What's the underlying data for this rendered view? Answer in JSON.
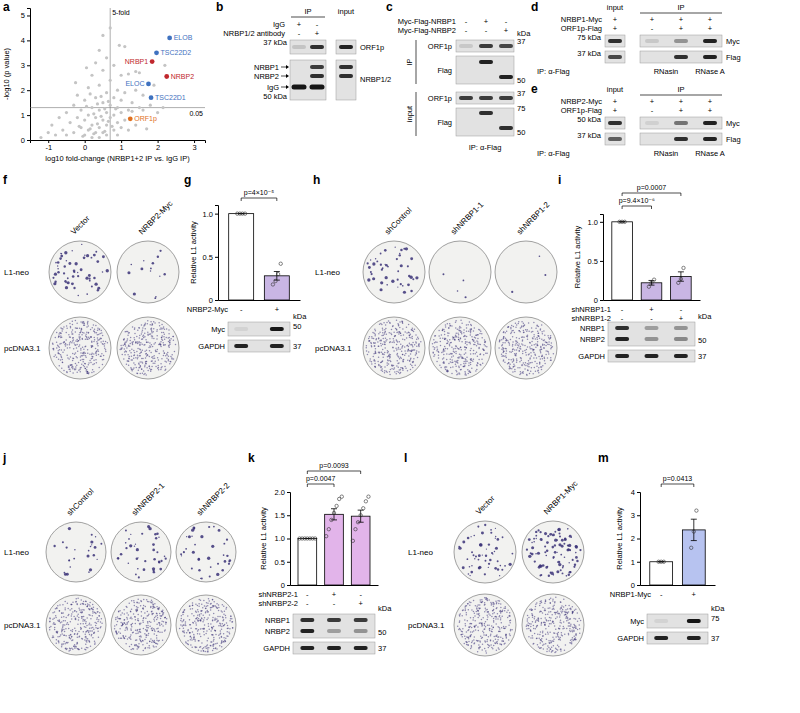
{
  "panel_letters": [
    "a",
    "b",
    "c",
    "d",
    "e",
    "f",
    "g",
    "h",
    "i",
    "j",
    "k",
    "l",
    "m"
  ],
  "chart_data": [
    {
      "type": "scatter",
      "x_label": "log10 fold-change (NRBP1+2 IP vs. IgG IP)",
      "y_label": "-log10 (p value)",
      "xlim": [
        -1.5,
        3.3
      ],
      "ylim": [
        0,
        5.3
      ],
      "xticks": [
        -1,
        0,
        1,
        2,
        3
      ],
      "yticks": [
        0,
        1,
        2,
        3,
        4,
        5
      ],
      "series": [
        {
          "color": "#c4c4c4",
          "x": [
            -1.2,
            -1.0,
            -0.9,
            -0.8,
            -0.7,
            -0.6,
            -0.5,
            -0.5,
            -0.4,
            -0.3,
            -0.3,
            -0.2,
            -0.2,
            -0.1,
            -0.1,
            0.0,
            0.0,
            0.0,
            0.1,
            0.1,
            0.1,
            0.2,
            0.2,
            0.2,
            0.2,
            0.3,
            0.3,
            0.3,
            0.3,
            0.4,
            0.4,
            0.4,
            0.4,
            0.4,
            0.5,
            0.5,
            0.5,
            0.5,
            0.5,
            0.6,
            0.6,
            0.6,
            0.6,
            0.6,
            0.7,
            0.7,
            0.7,
            0.7,
            0.8,
            0.8,
            0.8,
            0.8,
            0.9,
            0.9,
            0.9,
            0.9,
            1.0,
            1.0,
            1.0,
            1.0,
            1.1,
            1.1,
            1.1,
            1.2,
            1.2,
            1.2,
            1.3,
            1.3,
            1.4,
            1.4,
            1.5,
            1.5,
            1.6,
            1.6,
            1.7,
            1.8,
            1.9,
            2.0,
            2.15,
            2.2,
            0.15,
            0.35,
            0.55,
            0.45,
            0.25,
            0.65,
            0.05,
            -0.15,
            0.75,
            0.85,
            -0.05,
            0.35,
            0.55,
            0.25,
            0.45,
            0.65,
            0.15,
            -0.25,
            0.05,
            0.95,
            1.4
          ],
          "values": [
            0.1,
            0.3,
            0.6,
            0.2,
            0.9,
            0.4,
            1.1,
            0.2,
            0.7,
            1.4,
            0.3,
            0.9,
            1.8,
            0.5,
            1.2,
            0.2,
            0.8,
            1.6,
            0.4,
            1.0,
            2.1,
            0.6,
            1.3,
            0.1,
            2.6,
            0.9,
            1.7,
            0.3,
            3.1,
            0.5,
            1.2,
            2.2,
            0.1,
            3.6,
            0.8,
            1.5,
            2.8,
            0.3,
            4.2,
            0.6,
            1.9,
            1.1,
            3.3,
            0.2,
            0.9,
            1.4,
            2.4,
            4.5,
            0.4,
            1.7,
            1.0,
            3.0,
            0.7,
            1.3,
            2.0,
            0.2,
            1.1,
            0.5,
            2.6,
            1.6,
            0.8,
            1.9,
            3.75,
            1.2,
            0.4,
            2.65,
            1.5,
            1.15,
            2.0,
            0.6,
            1.3,
            2.7,
            1.2,
            1.8,
            0.45,
            1.4,
            2.2,
            1.1,
            1.3,
            3.0,
            0.45,
            0.65,
            0.35,
            0.95,
            1.05,
            0.75,
            1.35,
            0.55,
            0.55,
            1.25,
            0.15,
            1.45,
            1.25,
            0.25,
            1.75,
            1.55,
            1.85,
            2.3,
            2.9,
            3.8,
            2.75
          ]
        }
      ],
      "points": [
        {
          "label": "ELOB",
          "x": 2.33,
          "y": 4.1,
          "color": "#3f72c0"
        },
        {
          "label": "TSC22D2",
          "x": 1.97,
          "y": 3.5,
          "color": "#3f72c0"
        },
        {
          "label": "NRBP1",
          "x": 1.85,
          "y": 3.15,
          "color": "#c0272d"
        },
        {
          "label": "NRBP2",
          "x": 2.25,
          "y": 2.55,
          "color": "#c0272d"
        },
        {
          "label": "ELOC",
          "x": 1.75,
          "y": 2.25,
          "color": "#3f72c0"
        },
        {
          "label": "TSC22D1",
          "x": 1.82,
          "y": 1.7,
          "color": "#3f72c0"
        },
        {
          "label": "ORF1p",
          "x": 1.25,
          "y": 0.85,
          "color": "#e0701f"
        }
      ],
      "annotations": [
        {
          "text": "5-fold",
          "x": 0.699
        },
        {
          "text": "0.05",
          "y": 1.301
        }
      ]
    },
    {
      "type": "bar",
      "y_label": "Relative L1 activity",
      "categories": [
        null,
        null
      ],
      "values": [
        1,
        0.28
      ],
      "errors": [
        0,
        0.05
      ],
      "points": [
        [
          1,
          1,
          1,
          1
        ],
        [
          0.18,
          0.22,
          0.3,
          0.42
        ]
      ],
      "colors": [
        "#ffffff",
        "#c9b6e4"
      ],
      "ylim": [
        0,
        1.1
      ],
      "yticks": [
        0,
        0.5,
        {
          "value": 1,
          "label": "1.0"
        }
      ],
      "conditions": [
        {
          "label": "NRBP2-Myc",
          "signs": [
            "-",
            "+"
          ]
        }
      ],
      "annotations": [
        {
          "text": "p=4×10⁻⁵",
          "from": 0,
          "to": 1
        }
      ]
    },
    {
      "type": "bar",
      "y_label": "Relative L1 activity",
      "categories": [
        null,
        null,
        null
      ],
      "values": [
        1,
        0.22,
        0.3
      ],
      "errors": [
        0,
        0.03,
        0.06
      ],
      "points": [
        [
          1,
          1,
          1
        ],
        [
          0.17,
          0.22,
          0.26
        ],
        [
          0.22,
          0.27,
          0.41
        ]
      ],
      "colors": [
        "#ffffff",
        "#c9b6e4",
        "#c9b6e4"
      ],
      "ylim": [
        0,
        1.1
      ],
      "yticks": [
        0,
        0.5,
        {
          "value": 1,
          "label": "1.0"
        }
      ],
      "conditions": [
        {
          "label": "shNRBP1-1",
          "signs": [
            "-",
            "+",
            "-"
          ]
        },
        {
          "label": "shNRBP1-2",
          "signs": [
            "-",
            "-",
            "+"
          ]
        }
      ],
      "annotations": [
        {
          "text": "p=9.4×10⁻⁶",
          "from": 0,
          "to": 1
        },
        {
          "text": "p=0.0007",
          "from": 0,
          "to": 2
        }
      ]
    },
    {
      "type": "bar",
      "y_label": "Relative L1 activity",
      "categories": [
        null,
        null,
        null
      ],
      "values": [
        1,
        1.52,
        1.48
      ],
      "errors": [
        0,
        0.12,
        0.13
      ],
      "points": [
        [
          1,
          1,
          1,
          1,
          1,
          1,
          1
        ],
        [
          1.05,
          1.2,
          1.4,
          1.55,
          1.7,
          1.85,
          1.9
        ],
        [
          0.95,
          1.2,
          1.35,
          1.5,
          1.65,
          1.8,
          1.9
        ]
      ],
      "colors": [
        "#ffffff",
        "#e2b4ea",
        "#e2b4ea"
      ],
      "ylim": [
        0,
        2
      ],
      "yticks": [
        0,
        0.5,
        {
          "value": 1,
          "label": "1.0"
        },
        1.5,
        {
          "value": 2,
          "label": "2.0"
        }
      ],
      "conditions": [
        {
          "label": "shNRBP2-1",
          "signs": [
            "-",
            "+",
            "-"
          ]
        },
        {
          "label": "shNRBP2-2",
          "signs": [
            "-",
            "-",
            "+"
          ]
        }
      ],
      "annotations": [
        {
          "text": "p=0.0047",
          "from": 0,
          "to": 1
        },
        {
          "text": "p=0.0093",
          "from": 0,
          "to": 2
        }
      ]
    },
    {
      "type": "bar",
      "y_label": "Relative L1 activity",
      "categories": [
        null,
        null
      ],
      "values": [
        1,
        2.37
      ],
      "errors": [
        0,
        0.46
      ],
      "points": [
        [
          1,
          1,
          1
        ],
        [
          1.6,
          2.3,
          3.2
        ]
      ],
      "colors": [
        "#ffffff",
        "#b7c3f0"
      ],
      "ylim": [
        0,
        4
      ],
      "yticks": [
        0,
        1,
        2,
        3,
        4
      ],
      "conditions": [
        {
          "label": "NRBP1-Myc",
          "signs": [
            "-",
            "+"
          ]
        }
      ],
      "annotations": [
        {
          "text": "p=0.0413",
          "from": 0,
          "to": 1
        }
      ]
    }
  ],
  "blots": {
    "b": {
      "header": "IP",
      "input": "input",
      "conditions": [
        {
          "label": "IgG",
          "signs": [
            "+",
            "-"
          ]
        },
        {
          "label": "NRBP1/2 antibody",
          "signs": [
            "-",
            "+"
          ]
        }
      ],
      "left_labels": [
        "37 kDa",
        "NRBP1",
        "NRBP2",
        "IgG",
        "50 kDa"
      ],
      "right_labels": [
        "ORF1p",
        "NRBP1/2"
      ]
    },
    "c": {
      "conditions": [
        {
          "label": "Myc-Flag-NRBP1",
          "signs": [
            "-",
            "+",
            "-"
          ]
        },
        {
          "label": "Myc-Flag-NRBP2",
          "signs": [
            "-",
            "-",
            "+"
          ]
        }
      ],
      "sections": [
        "IP",
        "input"
      ],
      "row_labels": [
        "ORF1p",
        "Flag",
        "ORF1p",
        "Flag"
      ],
      "kda_header": "kDa",
      "kda": [
        "37",
        "50",
        "37",
        "75",
        "50"
      ],
      "footer": "IP: α-Flag"
    },
    "d": {
      "header": "IP",
      "input": "input",
      "conditions": [
        {
          "label": "NRBP1-Myc",
          "signs": [
            "+",
            "+",
            "+",
            "+"
          ]
        },
        {
          "label": "ORF1p-Flag",
          "signs": [
            "+",
            "-",
            "+",
            "+"
          ]
        }
      ],
      "left_labels": [
        "75 kDa",
        "37 kDa"
      ],
      "right_labels": [
        "Myc",
        "Flag"
      ],
      "treatments": [
        "RNasin",
        "RNase A"
      ],
      "footer": "IP: α-Flag"
    },
    "e": {
      "header": "IP",
      "input": "input",
      "conditions": [
        {
          "label": "NRBP2-Myc",
          "signs": [
            "+",
            "+",
            "+",
            "+"
          ]
        },
        {
          "label": "ORF1p-Flag",
          "signs": [
            "+",
            "-",
            "+",
            "+"
          ]
        }
      ],
      "left_labels": [
        "50 kDa",
        "37 kDa"
      ],
      "right_labels": [
        "Myc",
        "Flag"
      ],
      "treatments": [
        "RNasin",
        "RNase A"
      ],
      "footer": "IP: α-Flag"
    },
    "g": {
      "rows": [
        "Myc",
        "GAPDH"
      ],
      "kda_header": "kDa",
      "kda": [
        "50",
        "37"
      ]
    },
    "i": {
      "rows": [
        "NRBP1",
        "NRBP2",
        "GAPDH"
      ],
      "kda_header": "kDa",
      "kda": [
        "50",
        "37"
      ]
    },
    "k": {
      "rows": [
        "NRBP1",
        "NRBP2",
        "GAPDH"
      ],
      "kda_header": "kDa",
      "kda": [
        "50",
        "37"
      ]
    },
    "m": {
      "rows": [
        "Myc",
        "GAPDH"
      ],
      "kda_header": "kDa",
      "kda": [
        "75",
        "37"
      ]
    }
  },
  "colonies": {
    "f": {
      "columns": [
        "Vector",
        "NRBP2-Myc"
      ],
      "rows": [
        "L1-neo",
        "pcDNA3.1"
      ]
    },
    "h": {
      "columns": [
        "shControl",
        "shNRBP1-1",
        "shNRBP1-2"
      ],
      "rows": [
        "L1-neo",
        "pcDNA3.1"
      ]
    },
    "j": {
      "columns": [
        "shControl",
        "shNRBP2-1",
        "shNRBP2-2"
      ],
      "rows": [
        "L1-neo",
        "pcDNA3.1"
      ]
    },
    "l": {
      "columns": [
        "Vector",
        "NRBP1-Myc"
      ],
      "rows": [
        "L1-neo",
        "pcDNA3.1"
      ]
    }
  }
}
